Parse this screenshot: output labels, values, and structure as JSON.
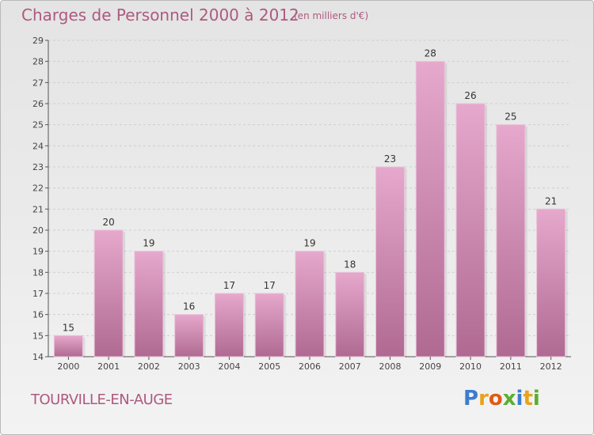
{
  "title": "Charges de Personnel 2000 à 2012",
  "subtitle": "(en milliers d'€)",
  "commune": "TOURVILLE-EN-AUGE",
  "logo": {
    "text": "Proxiti",
    "letter_colors": [
      "#3b7ccf",
      "#e8a21b",
      "#e05a16",
      "#5aae2f",
      "#3b7ccf",
      "#e8a21b",
      "#5aae2f"
    ]
  },
  "colors": {
    "text": "#ad5a7d",
    "bar_top": "#e6a8cc",
    "bar_bottom": "#b06a92",
    "axis": "#555555",
    "grid": "#cfcfcf"
  },
  "chart_data": {
    "type": "bar",
    "categories": [
      "2000",
      "2001",
      "2002",
      "2003",
      "2004",
      "2005",
      "2006",
      "2007",
      "2008",
      "2009",
      "2010",
      "2011",
      "2012"
    ],
    "values": [
      15,
      20,
      19,
      16,
      17,
      17,
      19,
      18,
      23,
      28,
      26,
      25,
      21
    ],
    "data_labels": [
      "15",
      "20",
      "19",
      "16",
      "17",
      "17",
      "19",
      "18",
      "23",
      "28",
      "26",
      "25",
      "21"
    ],
    "y_ticks": [
      "14",
      "15",
      "16",
      "17",
      "18",
      "19",
      "20",
      "21",
      "22",
      "23",
      "24",
      "25",
      "26",
      "27",
      "28",
      "29"
    ],
    "ylim": [
      14,
      29
    ],
    "grid": true,
    "title": "Charges de Personnel 2000 à 2012",
    "xlabel": "",
    "ylabel": ""
  }
}
